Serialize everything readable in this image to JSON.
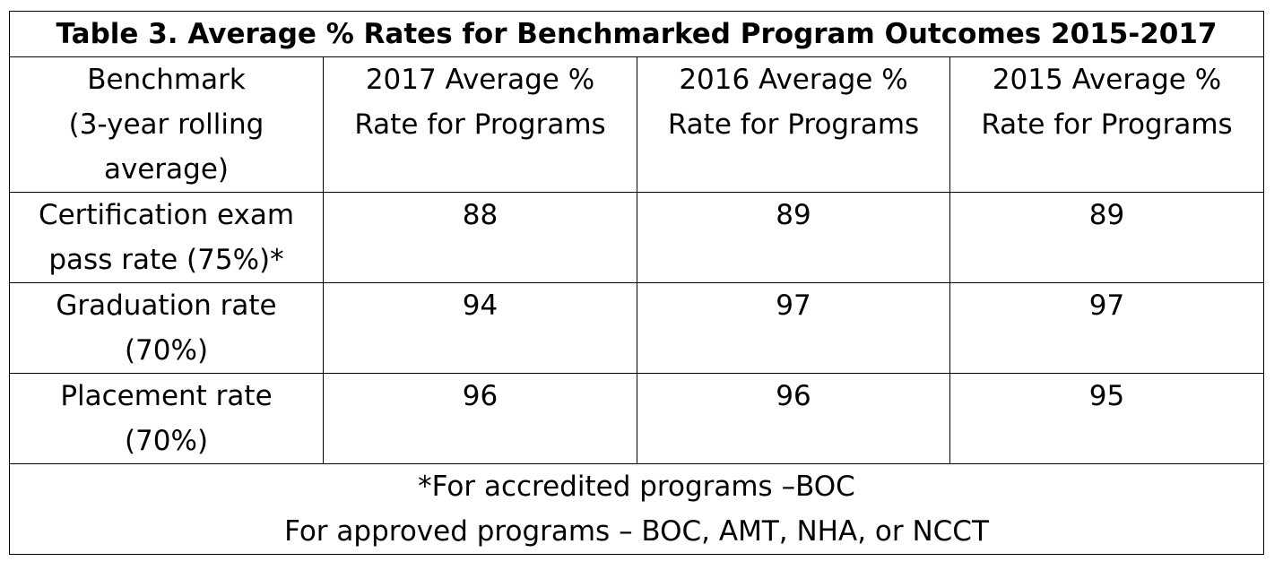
{
  "table": {
    "title": "Table 3. Average % Rates for Benchmarked Program Outcomes 2015-2017",
    "headers": [
      [
        "Benchmark",
        "(3-year rolling",
        "average)"
      ],
      [
        "2017 Average %",
        "Rate for Programs"
      ],
      [
        "2016 Average %",
        "Rate for Programs"
      ],
      [
        "2015 Average %",
        "Rate for Programs"
      ]
    ],
    "rows": [
      {
        "label": [
          "Certification exam",
          "pass rate (75%)*"
        ],
        "values": [
          "88",
          "89",
          "89"
        ]
      },
      {
        "label": [
          "Graduation rate",
          "(70%)"
        ],
        "values": [
          "94",
          "97",
          "97"
        ]
      },
      {
        "label": [
          "Placement rate",
          "(70%)"
        ],
        "values": [
          "96",
          "96",
          "95"
        ]
      }
    ],
    "footnote": [
      "*For accredited programs –BOC",
      "For approved programs – BOC, AMT, NHA, or NCCT"
    ]
  }
}
